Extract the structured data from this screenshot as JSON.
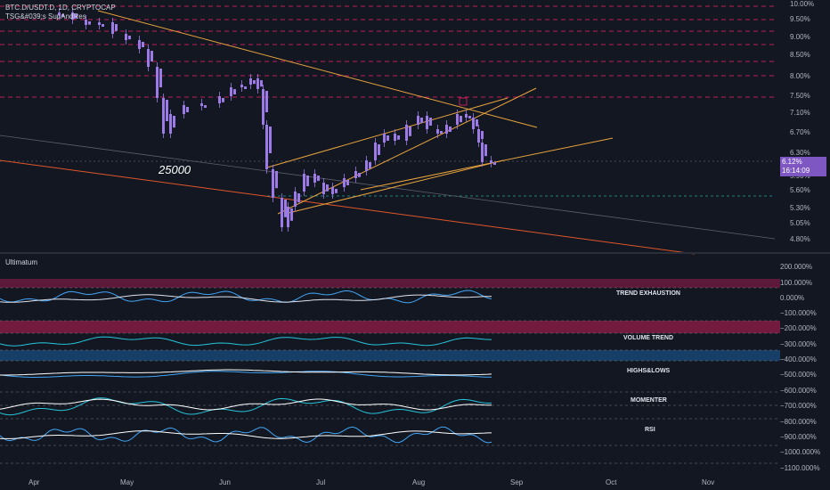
{
  "header": {
    "symbol": "BTC.D/USDT.D, 1D, CRYPTOCAP",
    "indicator": "TSG&#039;s SupAndRes"
  },
  "annotation": "25000",
  "price_axis": [
    "10.00%",
    "9.50%",
    "9.00%",
    "8.50%",
    "8.00%",
    "7.50%",
    "7.10%",
    "6.70%",
    "6.30%",
    "5.90%",
    "5.60%",
    "5.30%",
    "5.05%",
    "4.80%"
  ],
  "current_price": {
    "value": "6.12%",
    "time": "16:14:09"
  },
  "subpane": {
    "title": "Ultimatum",
    "axis": [
      "200.000%",
      "100.000%",
      "0.000%",
      "−100.000%",
      "−200.000%",
      "−300.000%",
      "−400.000%",
      "−500.000%",
      "−600.000%",
      "−700.000%",
      "−800.000%",
      "−900.000%",
      "−1000.000%",
      "−1100.000%"
    ],
    "labels": [
      "TREND EXHAUSTION",
      "VOLUME TREND",
      "HIGHS&LOWS",
      "MOMENTER",
      "RSI"
    ]
  },
  "time_axis": [
    "Apr",
    "May",
    "Jun",
    "Jul",
    "Aug",
    "Sep",
    "Oct",
    "Nov"
  ],
  "colors": {
    "bg": "#131722",
    "candle": "#9c7be6",
    "support": "#e91e63",
    "trend": "#e8a33d"
  }
}
